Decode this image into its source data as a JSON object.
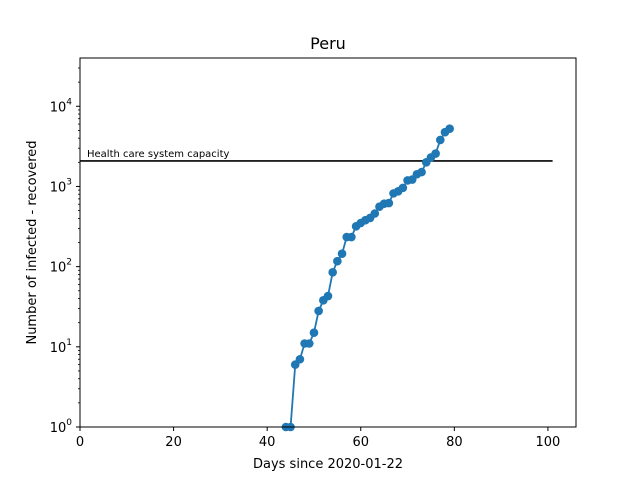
{
  "chart_data": {
    "type": "line",
    "title": "Peru",
    "xlabel": "Days since 2020-01-22",
    "ylabel": "Number of infected - recovered",
    "xlim": [
      0,
      106
    ],
    "ylim": [
      1,
      40000
    ],
    "yscale": "log",
    "x_ticks": [
      0,
      20,
      40,
      60,
      80,
      100
    ],
    "y_ticks": [
      {
        "value": 1,
        "base": "10",
        "exp": "0"
      },
      {
        "value": 10,
        "base": "10",
        "exp": "1"
      },
      {
        "value": 100,
        "base": "10",
        "exp": "2"
      },
      {
        "value": 1000,
        "base": "10",
        "exp": "3"
      },
      {
        "value": 10000,
        "base": "10",
        "exp": "4"
      }
    ],
    "grid": false,
    "series": [
      {
        "color": "#1f77b4",
        "x": [
          44,
          45,
          46,
          47,
          48,
          49,
          50,
          51,
          52,
          53,
          54,
          55,
          56,
          57,
          58,
          59,
          60,
          61,
          62,
          63,
          64,
          65,
          66,
          67,
          68,
          69,
          70,
          71,
          72,
          73,
          74,
          75,
          76,
          77,
          78,
          79
        ],
        "y": [
          1,
          1,
          6,
          7,
          11,
          11,
          15,
          28,
          38,
          43,
          85,
          117,
          145,
          234,
          234,
          318,
          350,
          380,
          405,
          460,
          560,
          610,
          620,
          820,
          870,
          960,
          1190,
          1220,
          1420,
          1510,
          2000,
          2300,
          2570,
          3800,
          4750,
          5250
        ]
      }
    ],
    "capacity_line": {
      "value": 2080,
      "x_start": 0,
      "x_end": 101,
      "label": "Health care system capacity",
      "color": "#000000"
    }
  }
}
